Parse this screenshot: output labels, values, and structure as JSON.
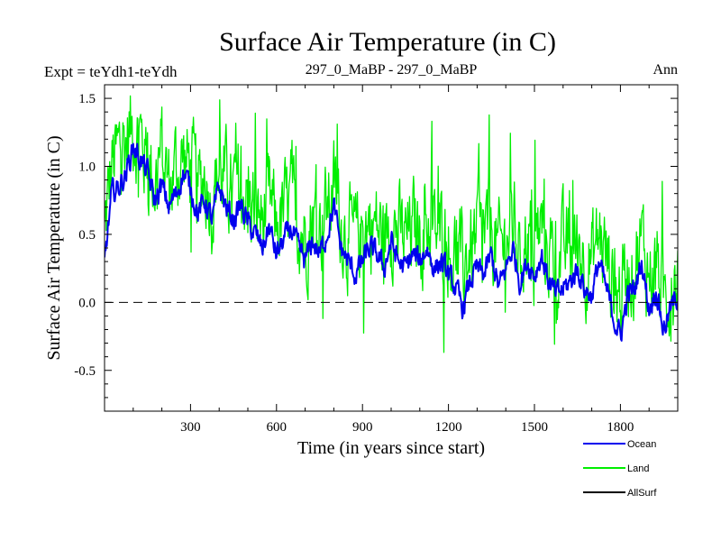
{
  "chart_data": {
    "type": "line",
    "title": "Surface Air Temperature (in C)",
    "subtitle_left": "Expt = teYdh1-teYdh",
    "subtitle_center": "297_0_MaBP - 297_0_MaBP",
    "subtitle_right": "Ann",
    "xlabel": "Time (in years since start)",
    "ylabel": "Surface Air Temperature (in C)",
    "xlim": [
      0,
      2000
    ],
    "ylim": [
      -0.8,
      1.6
    ],
    "x_ticks": [
      300,
      600,
      900,
      1200,
      1500,
      1800
    ],
    "x_tick_labels": [
      "300",
      "600",
      "900",
      "1200",
      "1500",
      "1800"
    ],
    "y_ticks": [
      -0.5,
      0.0,
      0.5,
      1.0,
      1.5
    ],
    "y_tick_labels": [
      "-0.5",
      "0.0",
      "0.5",
      "1.0",
      "1.5"
    ],
    "reference_line": 0.0,
    "legend_position": "bottom-right",
    "series": [
      {
        "name": "Ocean",
        "color": "#0000ee",
        "x": [
          0,
          25,
          50,
          75,
          100,
          125,
          150,
          175,
          200,
          225,
          250,
          275,
          300,
          325,
          350,
          375,
          400,
          425,
          450,
          475,
          500,
          525,
          550,
          575,
          600,
          625,
          650,
          675,
          700,
          725,
          750,
          775,
          800,
          825,
          850,
          875,
          900,
          925,
          950,
          975,
          1000,
          1025,
          1050,
          1075,
          1100,
          1125,
          1150,
          1175,
          1200,
          1225,
          1250,
          1275,
          1300,
          1325,
          1350,
          1375,
          1400,
          1425,
          1450,
          1475,
          1500,
          1525,
          1550,
          1575,
          1600,
          1625,
          1650,
          1675,
          1700,
          1725,
          1750,
          1775,
          1800,
          1825,
          1850,
          1875,
          1900,
          1925,
          1950,
          1975,
          2000
        ],
        "values": [
          0.3,
          0.8,
          0.85,
          0.95,
          1.15,
          1.05,
          0.95,
          0.75,
          0.85,
          0.7,
          0.8,
          0.95,
          0.85,
          0.65,
          0.75,
          0.6,
          0.85,
          0.7,
          0.6,
          0.72,
          0.58,
          0.5,
          0.4,
          0.55,
          0.35,
          0.45,
          0.55,
          0.4,
          0.3,
          0.45,
          0.35,
          0.5,
          0.7,
          0.4,
          0.3,
          0.2,
          0.3,
          0.4,
          0.35,
          0.25,
          0.45,
          0.3,
          0.25,
          0.35,
          0.3,
          0.4,
          0.25,
          0.3,
          0.2,
          0.1,
          -0.05,
          0.15,
          0.25,
          0.2,
          0.35,
          0.1,
          0.25,
          0.4,
          0.15,
          0.3,
          0.2,
          0.35,
          0.15,
          0.05,
          0.1,
          0.15,
          0.25,
          0.1,
          0.05,
          0.3,
          0.1,
          -0.1,
          -0.25,
          0.05,
          0.1,
          0.3,
          -0.05,
          0.1,
          -0.2,
          -0.05,
          0.05
        ]
      },
      {
        "name": "Land",
        "color": "#00ee00",
        "x": [
          0,
          25,
          50,
          75,
          100,
          125,
          150,
          175,
          200,
          225,
          250,
          275,
          300,
          325,
          350,
          375,
          400,
          425,
          450,
          475,
          500,
          525,
          550,
          575,
          600,
          625,
          650,
          675,
          700,
          725,
          750,
          775,
          800,
          825,
          850,
          875,
          900,
          925,
          950,
          975,
          1000,
          1025,
          1050,
          1075,
          1100,
          1125,
          1150,
          1175,
          1200,
          1225,
          1250,
          1275,
          1300,
          1325,
          1350,
          1375,
          1400,
          1425,
          1450,
          1475,
          1500,
          1525,
          1550,
          1575,
          1600,
          1625,
          1650,
          1675,
          1700,
          1725,
          1750,
          1775,
          1800,
          1825,
          1850,
          1875,
          1900,
          1925,
          1950,
          1975,
          2000
        ],
        "values": [
          0.5,
          1.0,
          1.1,
          1.2,
          1.3,
          1.2,
          1.05,
          0.9,
          1.1,
          0.85,
          1.0,
          1.05,
          1.0,
          0.8,
          0.95,
          0.75,
          1.0,
          0.85,
          0.8,
          0.9,
          0.75,
          0.7,
          0.6,
          0.75,
          0.55,
          0.65,
          0.75,
          0.6,
          0.5,
          0.65,
          0.55,
          0.7,
          0.85,
          0.6,
          0.5,
          0.45,
          0.5,
          0.6,
          0.55,
          0.45,
          0.65,
          0.5,
          0.45,
          0.55,
          0.5,
          0.6,
          0.5,
          0.5,
          0.45,
          0.35,
          0.25,
          0.4,
          0.45,
          0.45,
          0.55,
          0.35,
          0.45,
          0.6,
          0.4,
          0.5,
          0.45,
          0.55,
          0.4,
          0.3,
          0.35,
          0.4,
          0.45,
          0.35,
          0.3,
          0.5,
          0.35,
          0.15,
          0.05,
          0.25,
          0.3,
          0.45,
          0.2,
          0.3,
          0.05,
          0.15,
          0.25
        ]
      },
      {
        "name": "AllSurf",
        "color": "#000000",
        "x": [],
        "values": []
      }
    ]
  }
}
